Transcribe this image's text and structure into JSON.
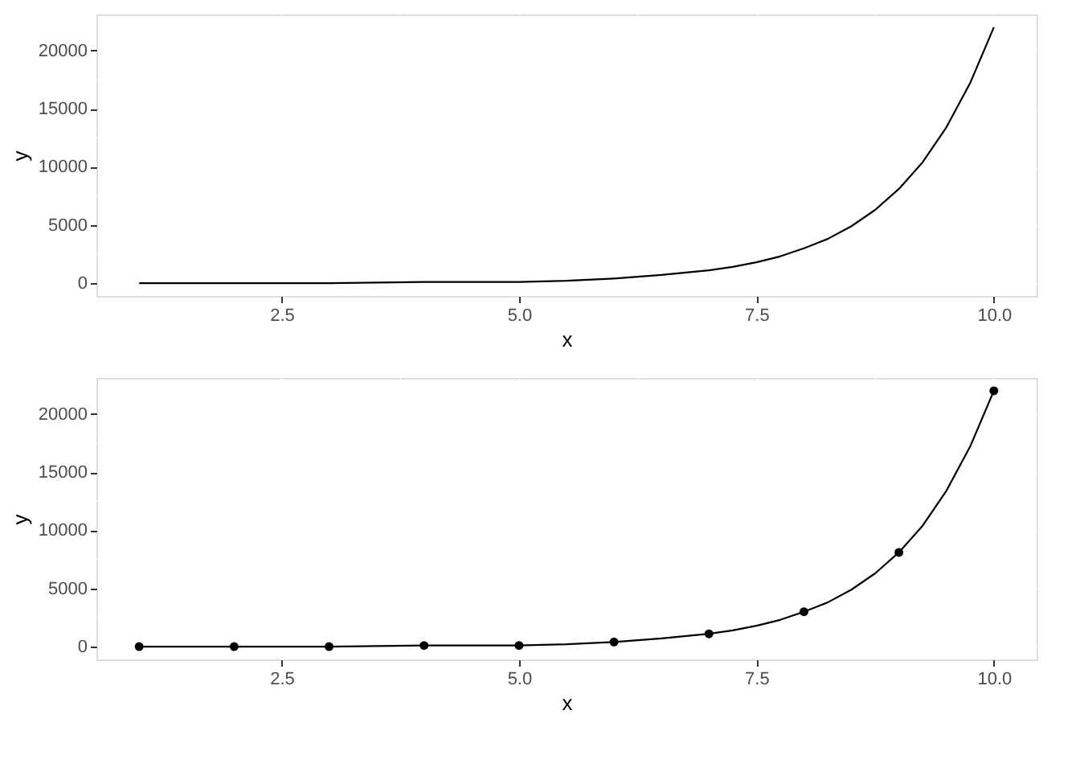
{
  "chart_data": [
    {
      "type": "line",
      "xlabel": "x",
      "ylabel": "y",
      "color": "#000000",
      "grid": true,
      "line_style": "solid",
      "x": [
        1,
        2,
        3,
        4,
        5,
        5.5,
        6,
        6.5,
        7,
        7.25,
        7.5,
        7.75,
        8,
        8.25,
        8.5,
        8.75,
        9,
        9.25,
        9.5,
        9.75,
        10
      ],
      "values": [
        0,
        0,
        0,
        100,
        100,
        200,
        400,
        700,
        1100,
        1400,
        1800,
        2300,
        3000,
        3800,
        4900,
        6300,
        8100,
        10400,
        13400,
        17200,
        22000
      ],
      "xlim": [
        0.55,
        10.45
      ],
      "ylim": [
        -1100,
        23100
      ],
      "xticks": [
        {
          "value": 2.5,
          "label": "2.5"
        },
        {
          "value": 5,
          "label": "5.0"
        },
        {
          "value": 7.5,
          "label": "7.5"
        },
        {
          "value": 10,
          "label": "10.0"
        }
      ],
      "yticks": [
        0,
        5000,
        10000,
        15000,
        20000
      ]
    },
    {
      "type": "line",
      "xlabel": "x",
      "ylabel": "y",
      "grid": true,
      "line_style": "solid",
      "series": [
        {
          "type": "line",
          "color": "#000000",
          "x": [
            1,
            2,
            3,
            4,
            5,
            5.5,
            6,
            6.5,
            7,
            7.25,
            7.5,
            7.75,
            8,
            8.25,
            8.5,
            8.75,
            9,
            9.25,
            9.5,
            9.75,
            10
          ],
          "values": [
            0,
            0,
            0,
            100,
            100,
            200,
            400,
            700,
            1100,
            1400,
            1800,
            2300,
            3000,
            3800,
            4900,
            6300,
            8100,
            10400,
            13400,
            17200,
            22000
          ]
        },
        {
          "type": "scatter",
          "color": "#000000",
          "marker": "circle",
          "x": [
            1,
            2,
            3,
            4,
            5,
            6,
            7,
            8,
            9,
            10
          ],
          "values": [
            0,
            0,
            0,
            100,
            100,
            400,
            1100,
            3000,
            8100,
            22000
          ]
        }
      ],
      "xlim": [
        0.55,
        10.45
      ],
      "ylim": [
        -1100,
        23100
      ],
      "xticks": [
        {
          "value": 2.5,
          "label": "2.5"
        },
        {
          "value": 5,
          "label": "5.0"
        },
        {
          "value": 7.5,
          "label": "7.5"
        },
        {
          "value": 10,
          "label": "10.0"
        }
      ],
      "yticks": [
        0,
        5000,
        10000,
        15000,
        20000
      ]
    }
  ]
}
